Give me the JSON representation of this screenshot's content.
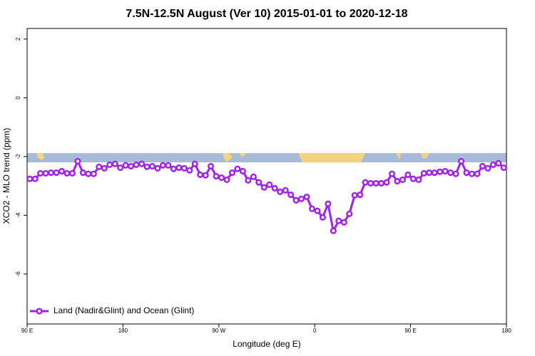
{
  "chart_data": {
    "type": "line",
    "title": "7.5N-12.5N August (Ver 10)   2015-01-01 to 2020-12-18",
    "x_label": "Longitude (deg E)",
    "y_label": "XCO2 - MLO trend (ppm)",
    "x": [
      92.5,
      97.5,
      102.5,
      107.5,
      112.5,
      117.5,
      122.5,
      127.5,
      132.5,
      137.5,
      142.5,
      147.5,
      152.5,
      157.5,
      162.5,
      167.5,
      172.5,
      177.5,
      182.5,
      187.5,
      192.5,
      197.5,
      202.5,
      207.5,
      212.5,
      217.5,
      222.5,
      227.5,
      232.5,
      237.5,
      242.5,
      247.5,
      252.5,
      257.5,
      262.5,
      267.5,
      272.5,
      277.5,
      282.5,
      287.5,
      292.5,
      297.5,
      302.5,
      307.5,
      312.5,
      317.5,
      322.5,
      327.5,
      332.5,
      337.5,
      342.5,
      347.5,
      352.5,
      357.5,
      362.5,
      367.5,
      372.5,
      377.5,
      382.5,
      387.5,
      392.5,
      397.5,
      402.5,
      407.5,
      412.5,
      417.5,
      422.5,
      427.5,
      432.5,
      437.5,
      442.5,
      447.5,
      452.5,
      457.5,
      462.5,
      467.5,
      472.5,
      477.5,
      482.5,
      487.5,
      492.5,
      497.5,
      502.5,
      507.5,
      512.5,
      517.5,
      522.5,
      527.5,
      532.5,
      537.5
    ],
    "series": [
      {
        "name": "Land (Nadir&Glint) and Ocean (Glint)",
        "color": "#a020f0",
        "values": [
          -2.76,
          -2.76,
          -2.57,
          -2.57,
          -2.55,
          -2.55,
          -2.5,
          -2.57,
          -2.57,
          -2.16,
          -2.55,
          -2.59,
          -2.59,
          -2.35,
          -2.4,
          -2.28,
          -2.25,
          -2.38,
          -2.3,
          -2.33,
          -2.28,
          -2.25,
          -2.35,
          -2.33,
          -2.4,
          -2.3,
          -2.3,
          -2.42,
          -2.38,
          -2.4,
          -2.47,
          -2.25,
          -2.62,
          -2.64,
          -2.33,
          -2.67,
          -2.72,
          -2.79,
          -2.55,
          -2.42,
          -2.5,
          -2.81,
          -2.69,
          -2.88,
          -3.05,
          -2.96,
          -3.08,
          -3.2,
          -3.15,
          -3.3,
          -3.49,
          -3.44,
          -3.37,
          -3.78,
          -3.85,
          -4.07,
          -3.61,
          -4.53,
          -4.19,
          -4.24,
          -3.95,
          -3.32,
          -3.3,
          -2.88,
          -2.91,
          -2.91,
          -2.91,
          -2.88,
          -2.59,
          -2.84,
          -2.79,
          -2.62,
          -2.76,
          -2.79,
          -2.57,
          -2.55,
          -2.55,
          -2.52,
          -2.5,
          -2.55,
          -2.59,
          -2.16,
          -2.55,
          -2.59,
          -2.59,
          -2.33,
          -2.4,
          -2.28,
          -2.23,
          -2.38
        ]
      }
    ],
    "xlim": [
      90,
      540
    ],
    "xticks": [
      {
        "value": 90,
        "label": "90 E"
      },
      {
        "value": 180,
        "label": "180"
      },
      {
        "value": 270,
        "label": "90 W"
      },
      {
        "value": 360,
        "label": "0"
      },
      {
        "value": 450,
        "label": "90 E"
      },
      {
        "value": 540,
        "label": "180"
      }
    ],
    "ylim": [
      -7.7,
      2.36
    ],
    "yticks": [
      2,
      0,
      -2,
      -4,
      -6
    ],
    "legend": "bottom-left"
  }
}
